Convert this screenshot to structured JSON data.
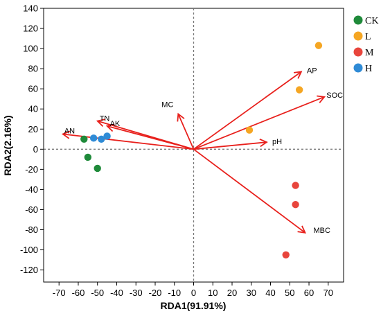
{
  "chart_data": {
    "type": "scatter",
    "xlabel": "RDA1(91.91%)",
    "ylabel": "RDA2(2.16%)",
    "xlim": [
      -78,
      78
    ],
    "ylim": [
      -132,
      140
    ],
    "xticks": [
      -70,
      -60,
      -50,
      -40,
      -30,
      -20,
      -10,
      0,
      10,
      20,
      30,
      40,
      50,
      60,
      70
    ],
    "yticks": [
      140,
      120,
      100,
      80,
      60,
      40,
      20,
      0,
      -20,
      -40,
      -60,
      -80,
      -100,
      -120
    ],
    "reference_lines": {
      "x": 0,
      "y": 0,
      "style": "dashed"
    },
    "legend_position": "top-right-outside",
    "series": [
      {
        "name": "CK",
        "color": "#1f8a3a",
        "points": [
          [
            -57,
            10
          ],
          [
            -55,
            -8
          ],
          [
            -50,
            -19
          ]
        ]
      },
      {
        "name": "L",
        "color": "#f5a623",
        "points": [
          [
            65,
            103
          ],
          [
            55,
            59
          ],
          [
            29,
            19
          ]
        ]
      },
      {
        "name": "M",
        "color": "#e8453c",
        "points": [
          [
            53,
            -36
          ],
          [
            53,
            -55
          ],
          [
            48,
            -105
          ]
        ]
      },
      {
        "name": "H",
        "color": "#2f8bd6",
        "points": [
          [
            -52,
            11
          ],
          [
            -48,
            10
          ],
          [
            -45,
            13
          ]
        ]
      }
    ],
    "vectors": [
      {
        "label": "AP",
        "x": 56,
        "y": 77
      },
      {
        "label": "SOC",
        "x": 68,
        "y": 52
      },
      {
        "label": "pH",
        "x": 38,
        "y": 7
      },
      {
        "label": "MBC",
        "x": 58,
        "y": -83
      },
      {
        "label": "MC",
        "x": -8,
        "y": 35
      },
      {
        "label": "TN",
        "x": -50,
        "y": 28
      },
      {
        "label": "AK",
        "x": -45,
        "y": 23
      },
      {
        "label": "AN",
        "x": -68,
        "y": 15
      }
    ],
    "vector_color": "#e8201c"
  }
}
